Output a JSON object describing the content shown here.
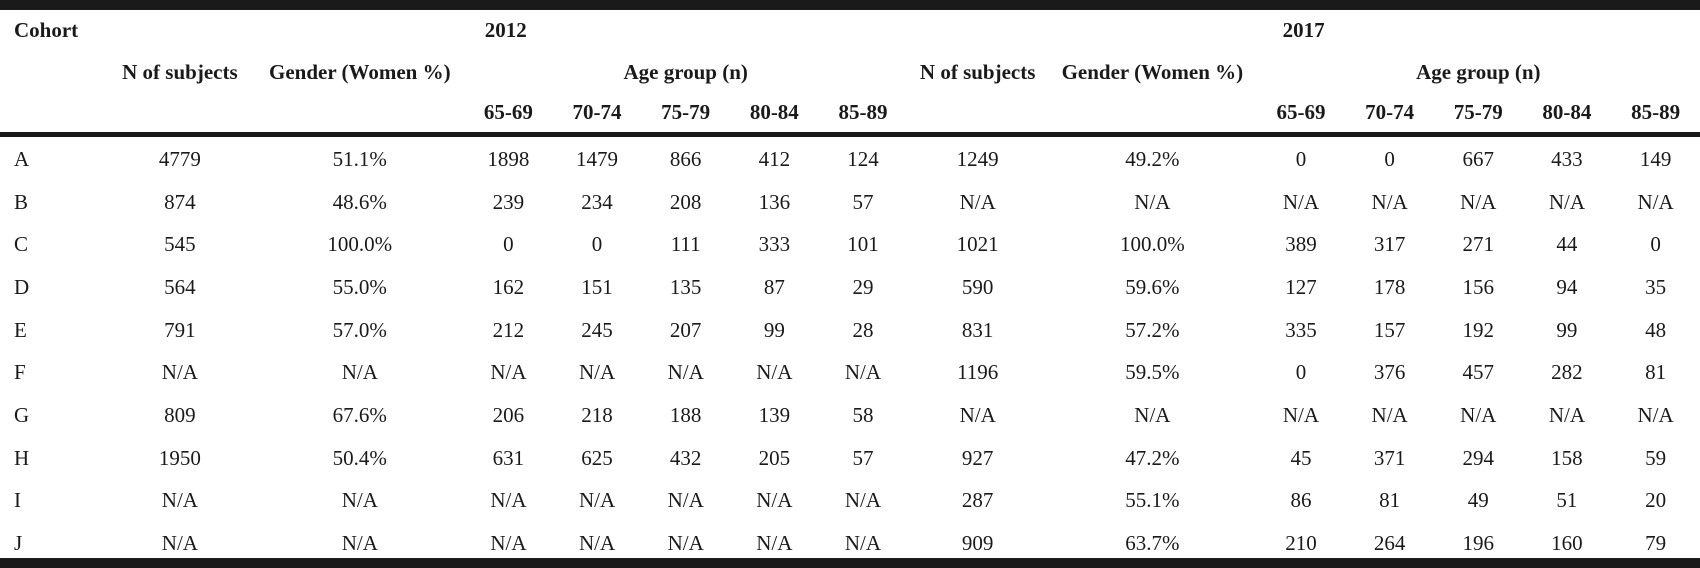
{
  "header": {
    "cohort": "Cohort",
    "year_a": "2012",
    "year_b": "2017",
    "n_subjects": "N of subjects",
    "gender": "Gender (Women %)",
    "age_group": "Age group (n)",
    "age_bands": [
      "65-69",
      "70-74",
      "75-79",
      "80-84",
      "85-89"
    ]
  },
  "rows": [
    {
      "cohort": "A",
      "y2012": [
        "4779",
        "51.1%",
        "1898",
        "1479",
        "866",
        "412",
        "124"
      ],
      "y2017": [
        "1249",
        "49.2%",
        "0",
        "0",
        "667",
        "433",
        "149"
      ]
    },
    {
      "cohort": "B",
      "y2012": [
        "874",
        "48.6%",
        "239",
        "234",
        "208",
        "136",
        "57"
      ],
      "y2017": [
        "N/A",
        "N/A",
        "N/A",
        "N/A",
        "N/A",
        "N/A",
        "N/A"
      ]
    },
    {
      "cohort": "C",
      "y2012": [
        "545",
        "100.0%",
        "0",
        "0",
        "111",
        "333",
        "101"
      ],
      "y2017": [
        "1021",
        "100.0%",
        "389",
        "317",
        "271",
        "44",
        "0"
      ]
    },
    {
      "cohort": "D",
      "y2012": [
        "564",
        "55.0%",
        "162",
        "151",
        "135",
        "87",
        "29"
      ],
      "y2017": [
        "590",
        "59.6%",
        "127",
        "178",
        "156",
        "94",
        "35"
      ]
    },
    {
      "cohort": "E",
      "y2012": [
        "791",
        "57.0%",
        "212",
        "245",
        "207",
        "99",
        "28"
      ],
      "y2017": [
        "831",
        "57.2%",
        "335",
        "157",
        "192",
        "99",
        "48"
      ]
    },
    {
      "cohort": "F",
      "y2012": [
        "N/A",
        "N/A",
        "N/A",
        "N/A",
        "N/A",
        "N/A",
        "N/A"
      ],
      "y2017": [
        "1196",
        "59.5%",
        "0",
        "376",
        "457",
        "282",
        "81"
      ]
    },
    {
      "cohort": "G",
      "y2012": [
        "809",
        "67.6%",
        "206",
        "218",
        "188",
        "139",
        "58"
      ],
      "y2017": [
        "N/A",
        "N/A",
        "N/A",
        "N/A",
        "N/A",
        "N/A",
        "N/A"
      ]
    },
    {
      "cohort": "H",
      "y2012": [
        "1950",
        "50.4%",
        "631",
        "625",
        "432",
        "205",
        "57"
      ],
      "y2017": [
        "927",
        "47.2%",
        "45",
        "371",
        "294",
        "158",
        "59"
      ]
    },
    {
      "cohort": "I",
      "y2012": [
        "N/A",
        "N/A",
        "N/A",
        "N/A",
        "N/A",
        "N/A",
        "N/A"
      ],
      "y2017": [
        "287",
        "55.1%",
        "86",
        "81",
        "49",
        "51",
        "20"
      ]
    },
    {
      "cohort": "J",
      "y2012": [
        "N/A",
        "N/A",
        "N/A",
        "N/A",
        "N/A",
        "N/A",
        "N/A"
      ],
      "y2017": [
        "909",
        "63.7%",
        "210",
        "264",
        "196",
        "160",
        "79"
      ]
    }
  ]
}
